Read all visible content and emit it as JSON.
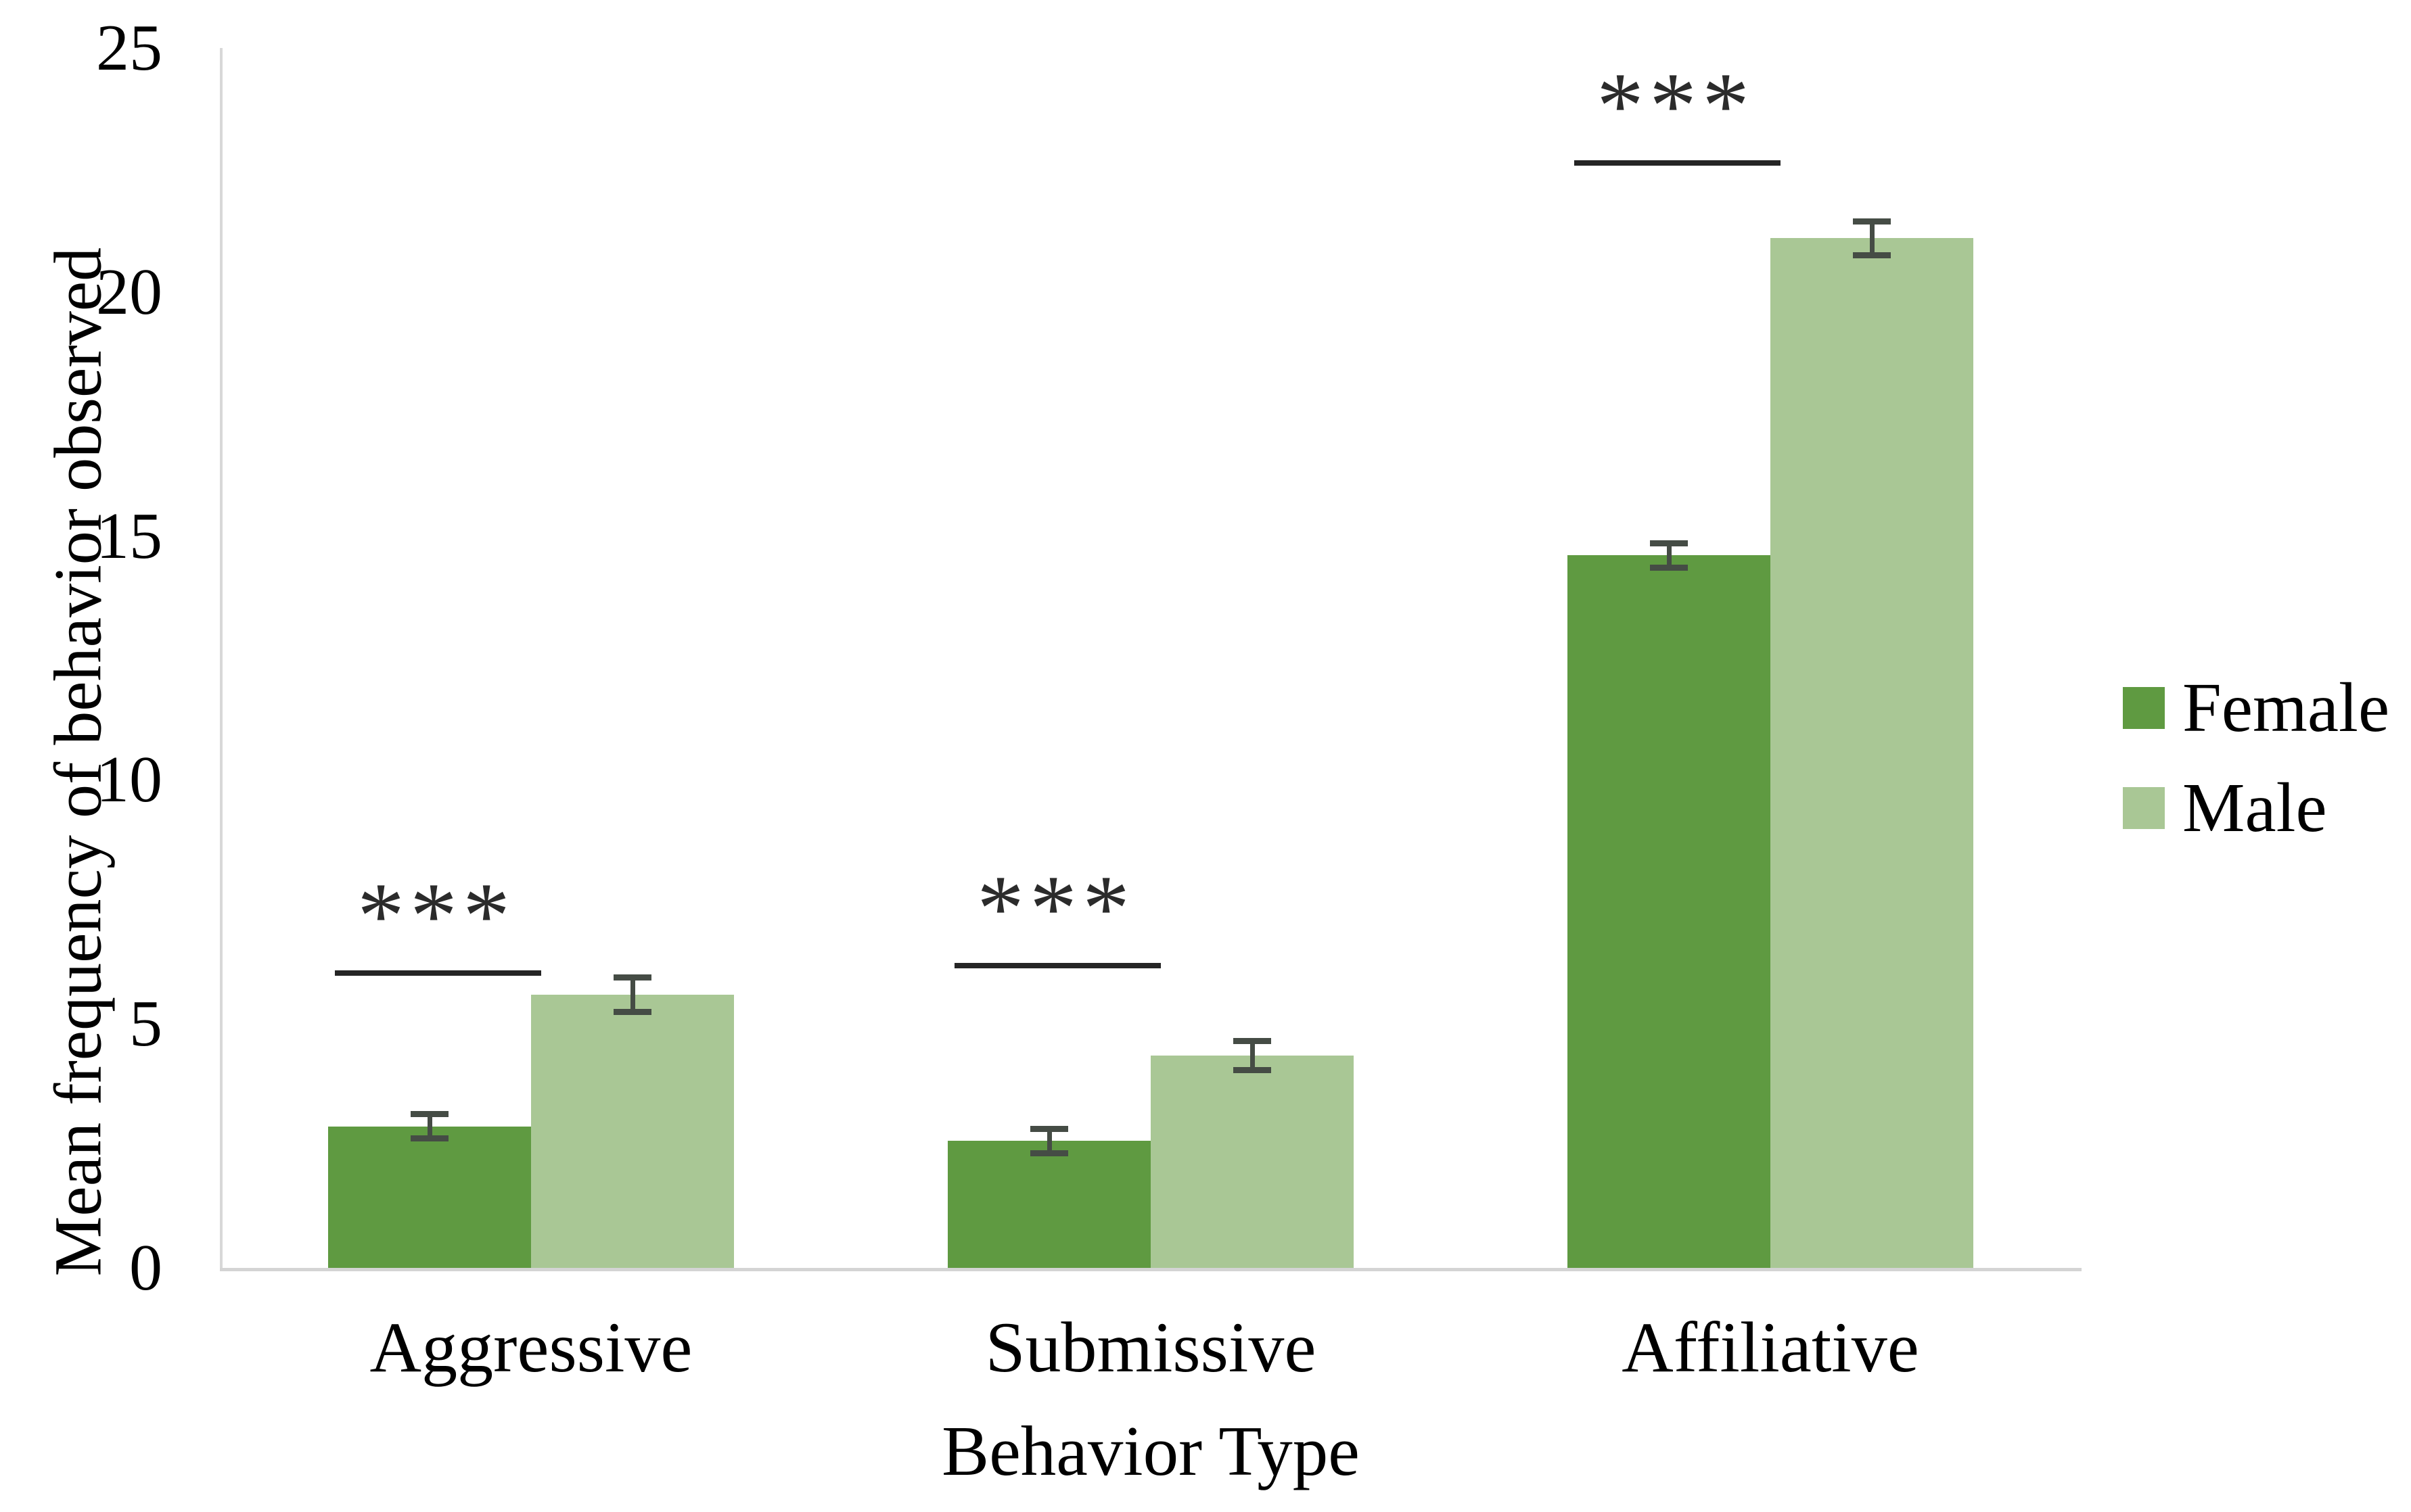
{
  "chart_data": {
    "type": "bar",
    "title": "",
    "categories": [
      "Aggressive",
      "Submissive",
      "Affiliative"
    ],
    "series": [
      {
        "name": "Female",
        "color": "#5f9a41",
        "values": [
          2.9,
          2.6,
          14.6
        ],
        "errors": [
          0.25,
          0.25,
          0.25
        ]
      },
      {
        "name": "Male",
        "color": "#a9c795",
        "values": [
          5.6,
          4.35,
          21.1
        ],
        "errors": [
          0.35,
          0.3,
          0.35
        ]
      }
    ],
    "significance": [
      {
        "label": "***",
        "line_y": 6.1
      },
      {
        "label": "***",
        "line_y": 6.25
      },
      {
        "label": "***",
        "line_y": 22.7
      }
    ],
    "xlabel": "Behavior Type",
    "ylabel": "Mean frequency of behavior observed",
    "ylim": [
      0,
      25
    ],
    "yticks": [
      0,
      5,
      10,
      15,
      20,
      25
    ],
    "legend_position": "right",
    "grid": false,
    "colors": {
      "axis_line": "#d8d8d8",
      "error_bar": "#454c45",
      "significance_line": "#252525",
      "text": "#000000",
      "background": "#ffffff"
    }
  }
}
